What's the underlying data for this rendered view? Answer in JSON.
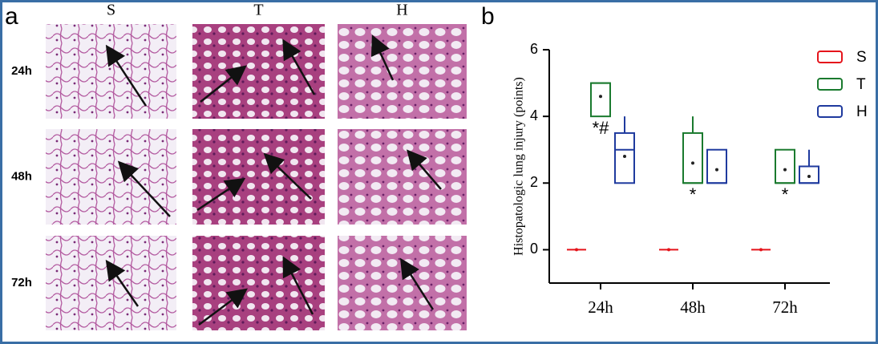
{
  "panel_a": {
    "label": "a",
    "columns": [
      "S",
      "T",
      "H"
    ],
    "rows": [
      "24h",
      "48h",
      "72h"
    ]
  },
  "chart_data": {
    "type": "box",
    "label": "b",
    "ylabel": "Histopatologic lung injury (points)",
    "categories": [
      "24h",
      "48h",
      "72h"
    ],
    "ylim": [
      -1,
      6
    ],
    "yticks": [
      0,
      2,
      4,
      6
    ],
    "series": [
      {
        "name": "S",
        "color": "#e5141b",
        "boxes": [
          {
            "min": 0,
            "q1": 0,
            "median": 0,
            "q3": 0,
            "max": 0,
            "mean": 0
          },
          {
            "min": 0,
            "q1": 0,
            "median": 0,
            "q3": 0,
            "max": 0,
            "mean": 0
          },
          {
            "min": 0,
            "q1": 0,
            "median": 0,
            "q3": 0,
            "max": 0,
            "mean": 0
          }
        ]
      },
      {
        "name": "T",
        "color": "#1a7a2e",
        "annotations": [
          "*#",
          "*",
          "*"
        ],
        "boxes": [
          {
            "min": 4,
            "q1": 4,
            "median": 5,
            "q3": 5,
            "max": 5,
            "mean": 4.6
          },
          {
            "min": 2,
            "q1": 2,
            "median": 2,
            "q3": 3.5,
            "max": 4,
            "mean": 2.6
          },
          {
            "min": 2,
            "q1": 2,
            "median": 2,
            "q3": 3,
            "max": 3,
            "mean": 2.4
          }
        ]
      },
      {
        "name": "H",
        "color": "#1f3a9e",
        "boxes": [
          {
            "min": 2,
            "q1": 2,
            "median": 3,
            "q3": 3.5,
            "max": 4,
            "mean": 2.8
          },
          {
            "min": 2,
            "q1": 2,
            "median": 2,
            "q3": 3,
            "max": 3,
            "mean": 2.4
          },
          {
            "min": 2,
            "q1": 2,
            "median": 2,
            "q3": 2.5,
            "max": 3,
            "mean": 2.2
          }
        ]
      }
    ]
  }
}
